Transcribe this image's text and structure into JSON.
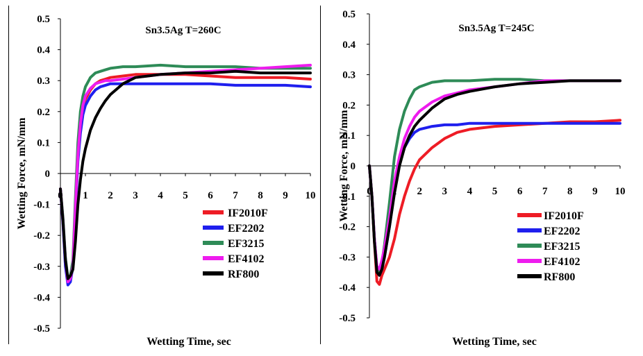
{
  "chart_data": [
    {
      "type": "line",
      "title": "Sn3.5Ag T=260C",
      "xlabel": "Wetting Time, sec",
      "ylabel": "Wetting Force, mN/mm",
      "xlim": [
        0,
        10
      ],
      "ylim": [
        -0.5,
        0.5
      ],
      "xticks": [
        0,
        1,
        2,
        3,
        4,
        5,
        6,
        7,
        8,
        9,
        10
      ],
      "yticks": [
        0.5,
        0.4,
        0.3,
        0.2,
        0.1,
        0,
        -0.1,
        -0.2,
        -0.3,
        -0.4,
        -0.5
      ],
      "xtick_labels": [
        "0",
        "1",
        "2",
        "3",
        "4",
        "5",
        "6",
        "7",
        "8",
        "9",
        "10"
      ],
      "ytick_labels": [
        "0.5",
        "0.4",
        "0.3",
        "0.2",
        "0.1",
        "0",
        "-0.1",
        "-0.2",
        "-0.3",
        "-0.4",
        "-0.5"
      ],
      "grid": false,
      "legend_position": "lower-right",
      "series": [
        {
          "name": "IF2010F",
          "color": "#ee1c25",
          "x": [
            0,
            0.1,
            0.2,
            0.3,
            0.4,
            0.5,
            0.6,
            0.7,
            0.8,
            0.9,
            1.0,
            1.2,
            1.4,
            1.6,
            1.8,
            2.0,
            2.5,
            3,
            4,
            5,
            6,
            7,
            8,
            9,
            10
          ],
          "y": [
            -0.05,
            -0.15,
            -0.28,
            -0.35,
            -0.34,
            -0.3,
            -0.12,
            0.05,
            0.15,
            0.21,
            0.24,
            0.27,
            0.29,
            0.3,
            0.305,
            0.31,
            0.315,
            0.32,
            0.32,
            0.32,
            0.315,
            0.31,
            0.31,
            0.31,
            0.305
          ]
        },
        {
          "name": "EF2202",
          "color": "#1f1fee",
          "x": [
            0,
            0.1,
            0.2,
            0.3,
            0.4,
            0.5,
            0.6,
            0.7,
            0.8,
            0.9,
            1.0,
            1.2,
            1.4,
            1.6,
            1.8,
            2.0,
            2.5,
            3,
            4,
            5,
            6,
            7,
            8,
            9,
            10
          ],
          "y": [
            -0.05,
            -0.16,
            -0.3,
            -0.36,
            -0.35,
            -0.3,
            -0.13,
            0.04,
            0.13,
            0.19,
            0.22,
            0.25,
            0.27,
            0.28,
            0.285,
            0.29,
            0.29,
            0.29,
            0.29,
            0.29,
            0.29,
            0.285,
            0.285,
            0.285,
            0.28
          ]
        },
        {
          "name": "EF3215",
          "color": "#2e8b57",
          "x": [
            0,
            0.1,
            0.2,
            0.3,
            0.4,
            0.5,
            0.6,
            0.7,
            0.8,
            0.9,
            1.0,
            1.2,
            1.4,
            1.6,
            1.8,
            2.0,
            2.5,
            3,
            4,
            5,
            6,
            7,
            8,
            9,
            10
          ],
          "y": [
            -0.05,
            -0.14,
            -0.27,
            -0.34,
            -0.33,
            -0.28,
            -0.08,
            0.1,
            0.2,
            0.25,
            0.28,
            0.31,
            0.325,
            0.33,
            0.335,
            0.34,
            0.345,
            0.345,
            0.35,
            0.345,
            0.345,
            0.345,
            0.34,
            0.34,
            0.34
          ]
        },
        {
          "name": "EF4102",
          "color": "#ee1cee",
          "x": [
            0,
            0.1,
            0.2,
            0.3,
            0.4,
            0.5,
            0.6,
            0.7,
            0.8,
            0.9,
            1.0,
            1.2,
            1.4,
            1.6,
            1.8,
            2.0,
            2.5,
            3,
            4,
            5,
            6,
            7,
            8,
            9,
            10
          ],
          "y": [
            -0.05,
            -0.15,
            -0.28,
            -0.35,
            -0.34,
            -0.3,
            -0.11,
            0.06,
            0.16,
            0.22,
            0.25,
            0.275,
            0.29,
            0.295,
            0.3,
            0.3,
            0.305,
            0.31,
            0.32,
            0.325,
            0.33,
            0.335,
            0.34,
            0.345,
            0.35
          ]
        },
        {
          "name": "RF800",
          "color": "#000000",
          "x": [
            0,
            0.1,
            0.2,
            0.3,
            0.4,
            0.5,
            0.6,
            0.7,
            0.8,
            0.9,
            1.0,
            1.2,
            1.4,
            1.6,
            1.8,
            2.0,
            2.5,
            3,
            3.5,
            4,
            5,
            6,
            7,
            8,
            9,
            10
          ],
          "y": [
            -0.05,
            -0.15,
            -0.28,
            -0.34,
            -0.33,
            -0.31,
            -0.22,
            -0.1,
            -0.02,
            0.04,
            0.08,
            0.14,
            0.18,
            0.21,
            0.235,
            0.255,
            0.29,
            0.31,
            0.315,
            0.32,
            0.325,
            0.325,
            0.33,
            0.325,
            0.325,
            0.325
          ]
        }
      ]
    },
    {
      "type": "line",
      "title": "Sn3.5Ag T=245C",
      "xlabel": "Wetting Time, sec",
      "ylabel": "Wetting Force, mN/mm",
      "xlim": [
        0,
        10
      ],
      "ylim": [
        -0.5,
        0.5
      ],
      "xticks": [
        0,
        1,
        2,
        3,
        4,
        5,
        6,
        7,
        8,
        9,
        10
      ],
      "yticks": [
        0.5,
        0.4,
        0.3,
        0.2,
        0.1,
        0,
        -0.1,
        -0.2,
        -0.3,
        -0.4,
        -0.5
      ],
      "xtick_labels": [
        "0",
        "1",
        "2",
        "3",
        "4",
        "5",
        "6",
        "7",
        "8",
        "9",
        "10"
      ],
      "ytick_labels": [
        "0.5",
        "0.4",
        "0.3",
        "0.2",
        "0.1",
        "0",
        "-0.1",
        "-0.2",
        "-0.3",
        "-0.4",
        "-0.5"
      ],
      "grid": false,
      "legend_position": "lower-right",
      "series": [
        {
          "name": "IF2010F",
          "color": "#ee1c25",
          "x": [
            0,
            0.1,
            0.2,
            0.3,
            0.4,
            0.5,
            0.6,
            0.8,
            1.0,
            1.2,
            1.4,
            1.6,
            1.8,
            2.0,
            2.5,
            3,
            3.5,
            4,
            5,
            6,
            7,
            8,
            9,
            10
          ],
          "y": [
            0,
            -0.1,
            -0.25,
            -0.38,
            -0.39,
            -0.36,
            -0.34,
            -0.3,
            -0.24,
            -0.16,
            -0.1,
            -0.05,
            -0.01,
            0.02,
            0.06,
            0.09,
            0.11,
            0.12,
            0.13,
            0.135,
            0.14,
            0.145,
            0.145,
            0.15
          ]
        },
        {
          "name": "EF2202",
          "color": "#1f1fee",
          "x": [
            0,
            0.1,
            0.2,
            0.3,
            0.4,
            0.5,
            0.6,
            0.8,
            1.0,
            1.2,
            1.4,
            1.6,
            1.8,
            2.0,
            2.5,
            3,
            3.5,
            4,
            5,
            6,
            7,
            8,
            9,
            10
          ],
          "y": [
            0,
            -0.1,
            -0.24,
            -0.34,
            -0.36,
            -0.34,
            -0.3,
            -0.2,
            -0.08,
            0.01,
            0.06,
            0.09,
            0.11,
            0.12,
            0.13,
            0.135,
            0.135,
            0.14,
            0.14,
            0.14,
            0.14,
            0.14,
            0.14,
            0.14
          ]
        },
        {
          "name": "EF3215",
          "color": "#2e8b57",
          "x": [
            0,
            0.1,
            0.2,
            0.3,
            0.4,
            0.5,
            0.6,
            0.8,
            1.0,
            1.2,
            1.4,
            1.6,
            1.8,
            2.0,
            2.5,
            3,
            3.5,
            4,
            5,
            6,
            7,
            8,
            9,
            10
          ],
          "y": [
            0,
            -0.1,
            -0.24,
            -0.34,
            -0.35,
            -0.32,
            -0.26,
            -0.12,
            0.03,
            0.12,
            0.18,
            0.22,
            0.25,
            0.26,
            0.275,
            0.28,
            0.28,
            0.28,
            0.285,
            0.285,
            0.28,
            0.28,
            0.28,
            0.28
          ]
        },
        {
          "name": "EF4102",
          "color": "#ee1cee",
          "x": [
            0,
            0.1,
            0.2,
            0.3,
            0.4,
            0.5,
            0.6,
            0.8,
            1.0,
            1.2,
            1.4,
            1.6,
            1.8,
            2.0,
            2.5,
            3,
            3.5,
            4,
            5,
            6,
            7,
            8,
            9,
            10
          ],
          "y": [
            0,
            -0.1,
            -0.24,
            -0.33,
            -0.34,
            -0.31,
            -0.27,
            -0.17,
            -0.05,
            0.03,
            0.09,
            0.13,
            0.16,
            0.18,
            0.21,
            0.23,
            0.24,
            0.25,
            0.26,
            0.27,
            0.28,
            0.28,
            0.28,
            0.28
          ]
        },
        {
          "name": "RF800",
          "color": "#000000",
          "x": [
            0,
            0.1,
            0.2,
            0.3,
            0.4,
            0.5,
            0.6,
            0.8,
            1.0,
            1.2,
            1.4,
            1.6,
            1.8,
            2.0,
            2.5,
            3,
            3.5,
            4,
            5,
            6,
            7,
            8,
            9,
            10
          ],
          "y": [
            0,
            -0.1,
            -0.25,
            -0.35,
            -0.36,
            -0.34,
            -0.3,
            -0.2,
            -0.09,
            0.0,
            0.06,
            0.1,
            0.13,
            0.15,
            0.19,
            0.22,
            0.235,
            0.245,
            0.26,
            0.27,
            0.275,
            0.28,
            0.28,
            0.28
          ]
        }
      ]
    }
  ]
}
